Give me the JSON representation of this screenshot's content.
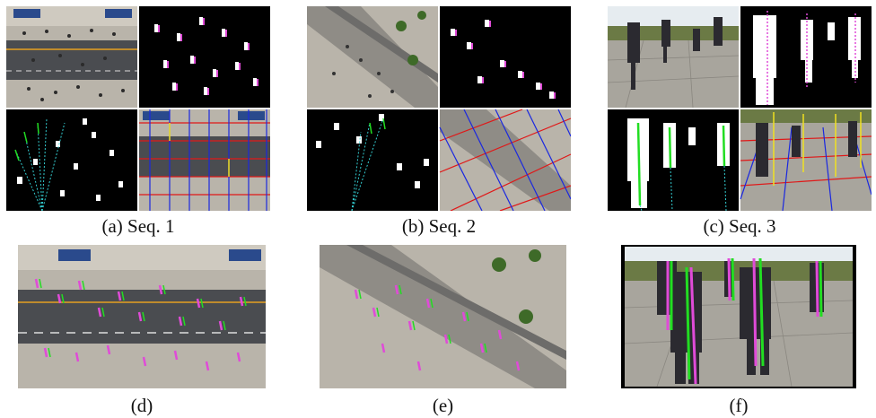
{
  "figure": {
    "captions": {
      "a": "(a) Seq. 1",
      "b": "(b) Seq. 2",
      "c": "(c) Seq. 3",
      "d": "(d)",
      "e": "(e)",
      "f": "(f)"
    },
    "colors": {
      "asphalt": "#4a4c50",
      "pavement": "#b9b4aa",
      "grass": "#6b7a45",
      "sky": "#e6ecf0",
      "mask_bg": "#000000",
      "mask_fg": "#ffffff",
      "magenta": "#e04bd8",
      "green": "#22dd22",
      "cyan": "#33ccd0",
      "grid_red": "#e01818",
      "grid_blue": "#1a28e0",
      "grid_yellow": "#f0e020",
      "road_line": "#e6a020",
      "bus_shelter": "#2a4a8c"
    }
  }
}
